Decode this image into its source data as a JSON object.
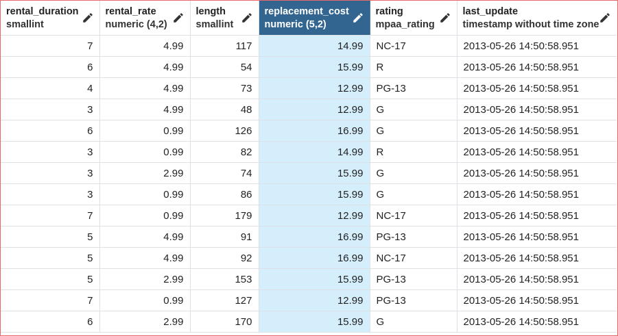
{
  "colors": {
    "frame_border": "#e8676b",
    "selected_header_bg": "#326690",
    "selected_column_bg": "#d5eefb",
    "grid_line": "#dde0e4"
  },
  "columns": [
    {
      "name": "rental_duration",
      "type": "smallint",
      "align": "num",
      "selected": false
    },
    {
      "name": "rental_rate",
      "type": "numeric (4,2)",
      "align": "num",
      "selected": false
    },
    {
      "name": "length",
      "type": "smallint",
      "align": "num",
      "selected": false
    },
    {
      "name": "replacement_cost",
      "type": "numeric (5,2)",
      "align": "num",
      "selected": true
    },
    {
      "name": "rating",
      "type": "mpaa_rating",
      "align": "txt",
      "selected": false
    },
    {
      "name": "last_update",
      "type": "timestamp without time zone",
      "align": "txt",
      "selected": false
    }
  ],
  "edit_icon": "pencil-icon",
  "rows": [
    [
      "7",
      "4.99",
      "117",
      "14.99",
      "NC-17",
      "2013-05-26 14:50:58.951"
    ],
    [
      "6",
      "4.99",
      "54",
      "15.99",
      "R",
      "2013-05-26 14:50:58.951"
    ],
    [
      "4",
      "4.99",
      "73",
      "12.99",
      "PG-13",
      "2013-05-26 14:50:58.951"
    ],
    [
      "3",
      "4.99",
      "48",
      "12.99",
      "G",
      "2013-05-26 14:50:58.951"
    ],
    [
      "6",
      "0.99",
      "126",
      "16.99",
      "G",
      "2013-05-26 14:50:58.951"
    ],
    [
      "3",
      "0.99",
      "82",
      "14.99",
      "R",
      "2013-05-26 14:50:58.951"
    ],
    [
      "3",
      "2.99",
      "74",
      "15.99",
      "G",
      "2013-05-26 14:50:58.951"
    ],
    [
      "3",
      "0.99",
      "86",
      "15.99",
      "G",
      "2013-05-26 14:50:58.951"
    ],
    [
      "7",
      "0.99",
      "179",
      "12.99",
      "NC-17",
      "2013-05-26 14:50:58.951"
    ],
    [
      "5",
      "4.99",
      "91",
      "16.99",
      "PG-13",
      "2013-05-26 14:50:58.951"
    ],
    [
      "5",
      "4.99",
      "92",
      "16.99",
      "NC-17",
      "2013-05-26 14:50:58.951"
    ],
    [
      "5",
      "2.99",
      "153",
      "15.99",
      "PG-13",
      "2013-05-26 14:50:58.951"
    ],
    [
      "7",
      "0.99",
      "127",
      "12.99",
      "PG-13",
      "2013-05-26 14:50:58.951"
    ],
    [
      "6",
      "2.99",
      "170",
      "15.99",
      "G",
      "2013-05-26 14:50:58.951"
    ]
  ]
}
